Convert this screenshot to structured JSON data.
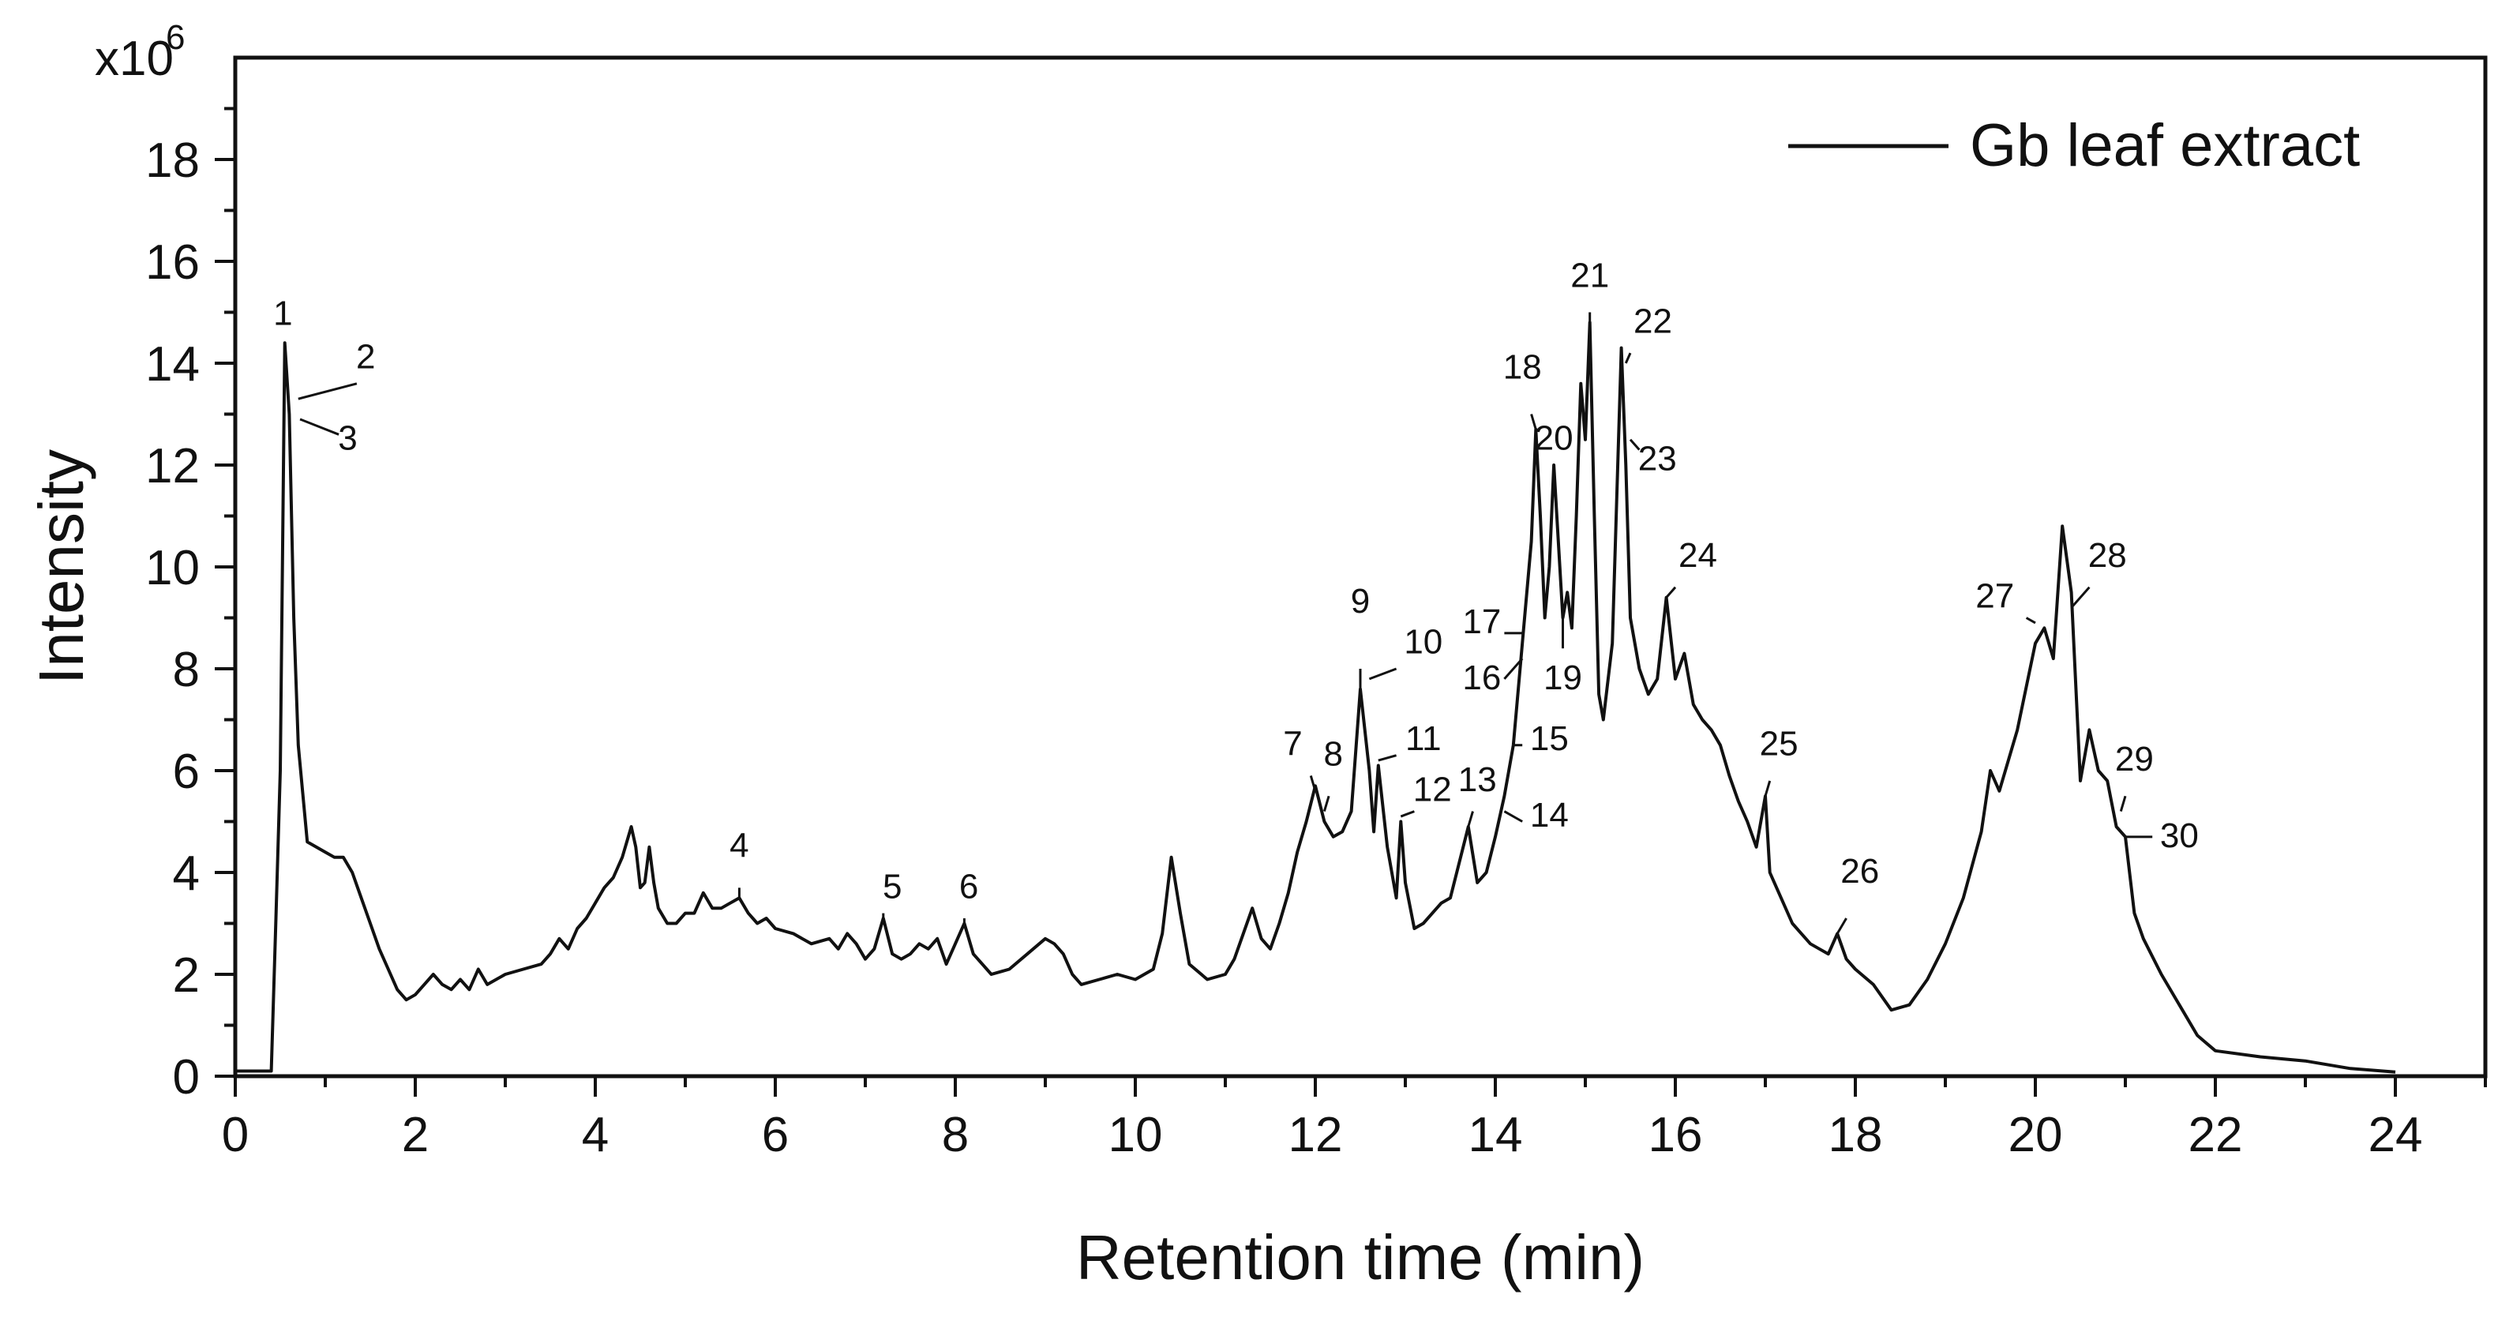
{
  "chart_data": {
    "type": "line",
    "xlabel": "Retention time (min)",
    "ylabel": "Intensity",
    "y_multiplier": "x10",
    "y_multiplier_exp": "6",
    "xlim": [
      0,
      25
    ],
    "ylim": [
      0,
      20
    ],
    "x_ticks": [
      0,
      2,
      4,
      6,
      8,
      10,
      12,
      14,
      16,
      18,
      20,
      22,
      24
    ],
    "y_ticks": [
      0,
      2,
      4,
      6,
      8,
      10,
      12,
      14,
      16,
      18
    ],
    "grid": false,
    "legend_position": "top-right",
    "series": [
      {
        "name": "Gb leaf extract",
        "color": "#111111",
        "points": [
          [
            0.0,
            0.1
          ],
          [
            0.4,
            0.1
          ],
          [
            0.45,
            3.0
          ],
          [
            0.5,
            6.0
          ],
          [
            0.55,
            14.4
          ],
          [
            0.6,
            13.0
          ],
          [
            0.65,
            9.0
          ],
          [
            0.7,
            6.5
          ],
          [
            0.8,
            4.6
          ],
          [
            1.0,
            4.4
          ],
          [
            1.1,
            4.3
          ],
          [
            1.2,
            4.3
          ],
          [
            1.3,
            4.0
          ],
          [
            1.4,
            3.5
          ],
          [
            1.5,
            3.0
          ],
          [
            1.6,
            2.5
          ],
          [
            1.7,
            2.1
          ],
          [
            1.8,
            1.7
          ],
          [
            1.9,
            1.5
          ],
          [
            2.0,
            1.6
          ],
          [
            2.1,
            1.8
          ],
          [
            2.2,
            2.0
          ],
          [
            2.3,
            1.8
          ],
          [
            2.4,
            1.7
          ],
          [
            2.5,
            1.9
          ],
          [
            2.6,
            1.7
          ],
          [
            2.7,
            2.1
          ],
          [
            2.8,
            1.8
          ],
          [
            3.0,
            2.0
          ],
          [
            3.2,
            2.1
          ],
          [
            3.4,
            2.2
          ],
          [
            3.5,
            2.4
          ],
          [
            3.6,
            2.7
          ],
          [
            3.7,
            2.5
          ],
          [
            3.8,
            2.9
          ],
          [
            3.9,
            3.1
          ],
          [
            4.0,
            3.4
          ],
          [
            4.1,
            3.7
          ],
          [
            4.2,
            3.9
          ],
          [
            4.3,
            4.3
          ],
          [
            4.4,
            4.9
          ],
          [
            4.45,
            4.5
          ],
          [
            4.5,
            3.7
          ],
          [
            4.55,
            3.8
          ],
          [
            4.6,
            4.5
          ],
          [
            4.65,
            3.8
          ],
          [
            4.7,
            3.3
          ],
          [
            4.8,
            3.0
          ],
          [
            4.9,
            3.0
          ],
          [
            5.0,
            3.2
          ],
          [
            5.1,
            3.2
          ],
          [
            5.2,
            3.6
          ],
          [
            5.3,
            3.3
          ],
          [
            5.4,
            3.3
          ],
          [
            5.5,
            3.4
          ],
          [
            5.6,
            3.5
          ],
          [
            5.7,
            3.2
          ],
          [
            5.8,
            3.0
          ],
          [
            5.9,
            3.1
          ],
          [
            6.0,
            2.9
          ],
          [
            6.2,
            2.8
          ],
          [
            6.4,
            2.6
          ],
          [
            6.6,
            2.7
          ],
          [
            6.7,
            2.5
          ],
          [
            6.8,
            2.8
          ],
          [
            6.9,
            2.6
          ],
          [
            7.0,
            2.3
          ],
          [
            7.1,
            2.5
          ],
          [
            7.2,
            3.1
          ],
          [
            7.3,
            2.4
          ],
          [
            7.4,
            2.3
          ],
          [
            7.5,
            2.4
          ],
          [
            7.6,
            2.6
          ],
          [
            7.7,
            2.5
          ],
          [
            7.8,
            2.7
          ],
          [
            7.9,
            2.2
          ],
          [
            8.0,
            2.6
          ],
          [
            8.1,
            3.0
          ],
          [
            8.2,
            2.4
          ],
          [
            8.3,
            2.2
          ],
          [
            8.4,
            2.0
          ],
          [
            8.6,
            2.1
          ],
          [
            8.8,
            2.4
          ],
          [
            9.0,
            2.7
          ],
          [
            9.1,
            2.6
          ],
          [
            9.2,
            2.4
          ],
          [
            9.3,
            2.0
          ],
          [
            9.4,
            1.8
          ],
          [
            9.6,
            1.9
          ],
          [
            9.8,
            2.0
          ],
          [
            10.0,
            1.9
          ],
          [
            10.2,
            2.1
          ],
          [
            10.3,
            2.8
          ],
          [
            10.4,
            4.3
          ],
          [
            10.5,
            3.2
          ],
          [
            10.6,
            2.2
          ],
          [
            10.8,
            1.9
          ],
          [
            11.0,
            2.0
          ],
          [
            11.1,
            2.3
          ],
          [
            11.2,
            2.8
          ],
          [
            11.3,
            3.3
          ],
          [
            11.4,
            2.7
          ],
          [
            11.5,
            2.5
          ],
          [
            11.6,
            3.0
          ],
          [
            11.7,
            3.6
          ],
          [
            11.8,
            4.4
          ],
          [
            11.9,
            5.0
          ],
          [
            12.0,
            5.7
          ],
          [
            12.1,
            5.0
          ],
          [
            12.2,
            4.7
          ],
          [
            12.3,
            4.8
          ],
          [
            12.4,
            5.2
          ],
          [
            12.5,
            7.6
          ],
          [
            12.6,
            6.0
          ],
          [
            12.65,
            4.8
          ],
          [
            12.7,
            6.1
          ],
          [
            12.8,
            4.5
          ],
          [
            12.9,
            3.5
          ],
          [
            12.95,
            5.0
          ],
          [
            13.0,
            3.8
          ],
          [
            13.1,
            2.9
          ],
          [
            13.2,
            3.0
          ],
          [
            13.3,
            3.2
          ],
          [
            13.4,
            3.4
          ],
          [
            13.5,
            3.5
          ],
          [
            13.6,
            4.2
          ],
          [
            13.7,
            4.9
          ],
          [
            13.8,
            3.8
          ],
          [
            13.9,
            4.0
          ],
          [
            14.0,
            4.7
          ],
          [
            14.1,
            5.5
          ],
          [
            14.2,
            6.5
          ],
          [
            14.3,
            8.5
          ],
          [
            14.4,
            10.5
          ],
          [
            14.45,
            12.7
          ],
          [
            14.5,
            11.0
          ],
          [
            14.55,
            9.0
          ],
          [
            14.6,
            10.0
          ],
          [
            14.65,
            12.0
          ],
          [
            14.7,
            10.5
          ],
          [
            14.75,
            9.0
          ],
          [
            14.8,
            9.5
          ],
          [
            14.85,
            8.8
          ],
          [
            14.9,
            11.0
          ],
          [
            14.95,
            13.6
          ],
          [
            15.0,
            12.5
          ],
          [
            15.05,
            14.8
          ],
          [
            15.1,
            11.0
          ],
          [
            15.15,
            7.5
          ],
          [
            15.2,
            7.0
          ],
          [
            15.3,
            8.5
          ],
          [
            15.4,
            14.3
          ],
          [
            15.45,
            12.0
          ],
          [
            15.5,
            9.0
          ],
          [
            15.6,
            8.0
          ],
          [
            15.7,
            7.5
          ],
          [
            15.8,
            7.8
          ],
          [
            15.9,
            9.4
          ],
          [
            16.0,
            7.8
          ],
          [
            16.1,
            8.3
          ],
          [
            16.2,
            7.3
          ],
          [
            16.3,
            7.0
          ],
          [
            16.4,
            6.8
          ],
          [
            16.5,
            6.5
          ],
          [
            16.6,
            5.9
          ],
          [
            16.7,
            5.4
          ],
          [
            16.8,
            5.0
          ],
          [
            16.9,
            4.5
          ],
          [
            17.0,
            5.5
          ],
          [
            17.05,
            4.0
          ],
          [
            17.1,
            3.8
          ],
          [
            17.2,
            3.4
          ],
          [
            17.3,
            3.0
          ],
          [
            17.4,
            2.8
          ],
          [
            17.5,
            2.6
          ],
          [
            17.6,
            2.5
          ],
          [
            17.7,
            2.4
          ],
          [
            17.8,
            2.8
          ],
          [
            17.9,
            2.3
          ],
          [
            18.0,
            2.1
          ],
          [
            18.2,
            1.8
          ],
          [
            18.4,
            1.3
          ],
          [
            18.6,
            1.4
          ],
          [
            18.8,
            1.9
          ],
          [
            19.0,
            2.6
          ],
          [
            19.2,
            3.5
          ],
          [
            19.4,
            4.8
          ],
          [
            19.5,
            6.0
          ],
          [
            19.6,
            5.6
          ],
          [
            19.8,
            6.8
          ],
          [
            20.0,
            8.5
          ],
          [
            20.1,
            8.8
          ],
          [
            20.2,
            8.2
          ],
          [
            20.3,
            10.8
          ],
          [
            20.4,
            9.5
          ],
          [
            20.5,
            5.8
          ],
          [
            20.6,
            6.8
          ],
          [
            20.7,
            6.0
          ],
          [
            20.8,
            5.8
          ],
          [
            20.9,
            4.9
          ],
          [
            21.0,
            4.7
          ],
          [
            21.1,
            3.2
          ],
          [
            21.2,
            2.7
          ],
          [
            21.4,
            2.0
          ],
          [
            21.6,
            1.4
          ],
          [
            21.8,
            0.8
          ],
          [
            22.0,
            0.5
          ],
          [
            22.5,
            0.38
          ],
          [
            23.0,
            0.3
          ],
          [
            23.5,
            0.15
          ],
          [
            24.0,
            0.08
          ]
        ]
      }
    ],
    "peak_labels": [
      {
        "text": "1",
        "x": 0.55,
        "y": 14.4,
        "tx": 0.53,
        "ty": 14.75,
        "lx": 0.55,
        "ly": 14.4
      },
      {
        "text": "2",
        "x": 0.7,
        "y": 13.3,
        "tx": 1.45,
        "ty": 13.9,
        "lx": 1.35,
        "ly": 13.6
      },
      {
        "text": "3",
        "x": 0.72,
        "y": 12.9,
        "tx": 1.25,
        "ty": 12.3,
        "lx": 1.15,
        "ly": 12.6
      },
      {
        "text": "4",
        "x": 5.6,
        "y": 3.5,
        "tx": 5.6,
        "ty": 4.3,
        "lx": 5.6,
        "ly": 3.7
      },
      {
        "text": "5",
        "x": 7.2,
        "y": 3.1,
        "tx": 7.3,
        "ty": 3.5,
        "lx": 7.2,
        "ly": 3.2
      },
      {
        "text": "6",
        "x": 8.1,
        "y": 3.0,
        "tx": 8.15,
        "ty": 3.5,
        "lx": 8.1,
        "ly": 3.1
      },
      {
        "text": "7",
        "x": 12.0,
        "y": 5.6,
        "tx": 11.75,
        "ty": 6.3,
        "lx": 11.95,
        "ly": 5.9
      },
      {
        "text": "8",
        "x": 12.1,
        "y": 5.2,
        "tx": 12.2,
        "ty": 6.1,
        "lx": 12.15,
        "ly": 5.5
      },
      {
        "text": "9",
        "x": 12.5,
        "y": 7.6,
        "tx": 12.5,
        "ty": 9.1,
        "lx": 12.5,
        "ly": 8.0
      },
      {
        "text": "10",
        "x": 12.6,
        "y": 7.8,
        "tx": 13.2,
        "ty": 8.3,
        "lx": 12.9,
        "ly": 8.0
      },
      {
        "text": "11",
        "x": 12.7,
        "y": 6.2,
        "tx": 13.2,
        "ty": 6.4,
        "lx": 12.9,
        "ly": 6.3
      },
      {
        "text": "12",
        "x": 12.95,
        "y": 5.1,
        "tx": 13.3,
        "ty": 5.4,
        "lx": 13.1,
        "ly": 5.2
      },
      {
        "text": "13",
        "x": 13.7,
        "y": 4.9,
        "tx": 13.8,
        "ty": 5.6,
        "lx": 13.75,
        "ly": 5.2
      },
      {
        "text": "14",
        "x": 14.1,
        "y": 5.2,
        "tx": 14.6,
        "ty": 4.9,
        "lx": 14.3,
        "ly": 5.0
      },
      {
        "text": "15",
        "x": 14.2,
        "y": 6.5,
        "tx": 14.6,
        "ty": 6.4,
        "lx": 14.3,
        "ly": 6.5
      },
      {
        "text": "16",
        "x": 14.3,
        "y": 8.2,
        "tx": 13.85,
        "ty": 7.6,
        "lx": 14.1,
        "ly": 7.8
      },
      {
        "text": "17",
        "x": 14.3,
        "y": 8.7,
        "tx": 13.85,
        "ty": 8.7,
        "lx": 14.1,
        "ly": 8.7
      },
      {
        "text": "18",
        "x": 14.45,
        "y": 12.7,
        "tx": 14.3,
        "ty": 13.7,
        "lx": 14.4,
        "ly": 13.0
      },
      {
        "text": "19",
        "x": 14.75,
        "y": 9.0,
        "tx": 14.75,
        "ty": 7.6,
        "lx": 14.75,
        "ly": 8.4
      },
      {
        "text": "20",
        "x": 14.65,
        "y": 12.0,
        "tx": 14.65,
        "ty": 12.3,
        "lx": 14.65,
        "ly": 12.0
      },
      {
        "text": "21",
        "x": 15.05,
        "y": 14.8,
        "tx": 15.05,
        "ty": 15.5,
        "lx": 15.05,
        "ly": 15.0
      },
      {
        "text": "22",
        "x": 15.45,
        "y": 14.0,
        "tx": 15.75,
        "ty": 14.6,
        "lx": 15.5,
        "ly": 14.2
      },
      {
        "text": "23",
        "x": 15.5,
        "y": 12.5,
        "tx": 15.8,
        "ty": 11.9,
        "lx": 15.6,
        "ly": 12.3
      },
      {
        "text": "24",
        "x": 15.9,
        "y": 9.4,
        "tx": 16.25,
        "ty": 10.0,
        "lx": 16.0,
        "ly": 9.6
      },
      {
        "text": "25",
        "x": 17.0,
        "y": 5.5,
        "tx": 17.15,
        "ty": 6.3,
        "lx": 17.05,
        "ly": 5.8
      },
      {
        "text": "26",
        "x": 17.8,
        "y": 2.8,
        "tx": 18.05,
        "ty": 3.8,
        "lx": 17.9,
        "ly": 3.1
      },
      {
        "text": "27",
        "x": 20.0,
        "y": 8.9,
        "tx": 19.55,
        "ty": 9.2,
        "lx": 19.9,
        "ly": 9.0
      },
      {
        "text": "28",
        "x": 20.4,
        "y": 9.2,
        "tx": 20.8,
        "ty": 10.0,
        "lx": 20.6,
        "ly": 9.6
      },
      {
        "text": "29",
        "x": 20.95,
        "y": 5.2,
        "tx": 21.1,
        "ty": 6.0,
        "lx": 21.0,
        "ly": 5.5
      },
      {
        "text": "30",
        "x": 21.0,
        "y": 4.7,
        "tx": 21.6,
        "ty": 4.5,
        "lx": 21.3,
        "ly": 4.7
      }
    ]
  }
}
